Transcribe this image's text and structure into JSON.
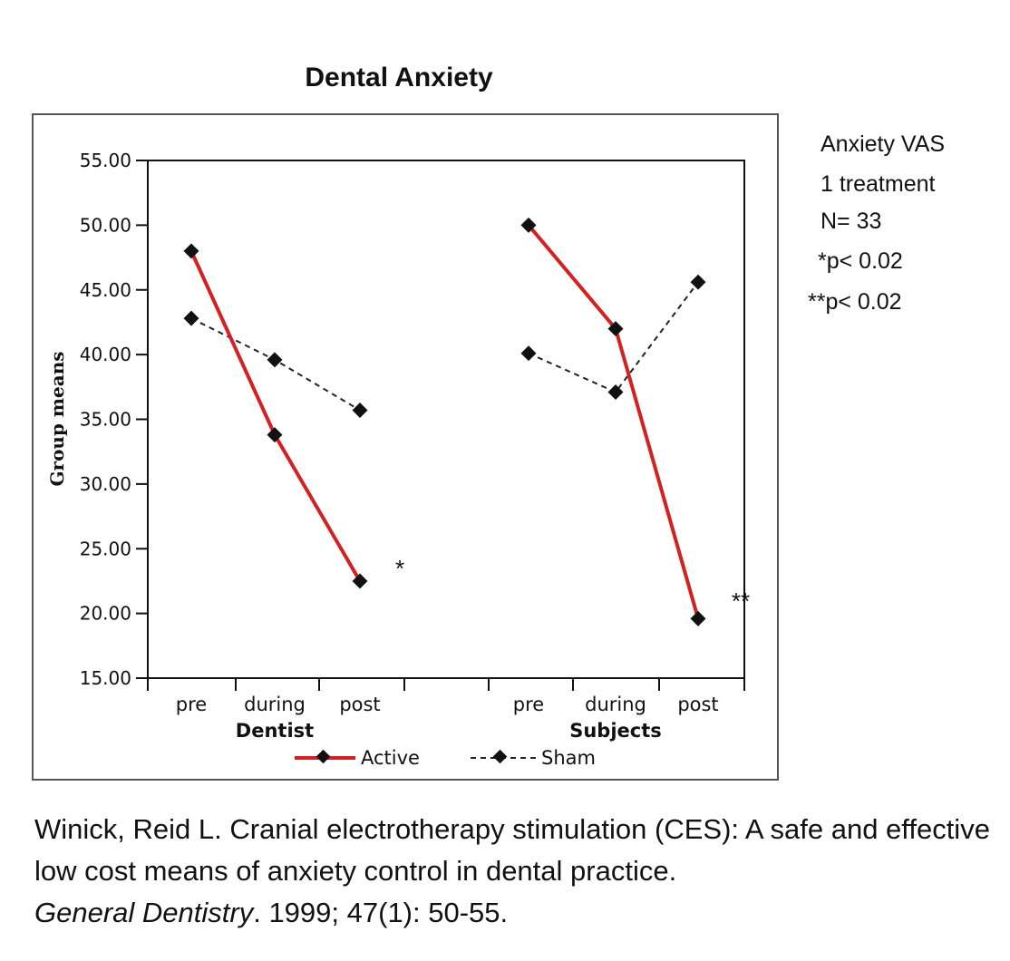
{
  "chart_data": {
    "type": "line",
    "title": "Dental Anxiety",
    "ylabel": "Group means",
    "ylim": [
      15,
      55
    ],
    "yticks": [
      "15.00",
      "20.00",
      "25.00",
      "30.00",
      "35.00",
      "40.00",
      "45.00",
      "50.00",
      "55.00"
    ],
    "grid": false,
    "legend_position": "bottom",
    "groups": [
      {
        "name": "Dentist",
        "categories": [
          "pre",
          "during",
          "post"
        ],
        "series": [
          {
            "name": "Active",
            "values": [
              48.0,
              33.8,
              22.5
            ],
            "color": "#d42020",
            "style": "solid"
          },
          {
            "name": "Sham",
            "values": [
              42.8,
              39.6,
              35.7
            ],
            "color": "#222222",
            "style": "dashed"
          }
        ],
        "annotation": "*"
      },
      {
        "name": "Subjects",
        "categories": [
          "pre",
          "during",
          "post"
        ],
        "series": [
          {
            "name": "Active",
            "values": [
              50.0,
              42.0,
              19.6
            ],
            "color": "#d42020",
            "style": "solid"
          },
          {
            "name": "Sham",
            "values": [
              40.1,
              37.1,
              45.6
            ],
            "color": "#222222",
            "style": "dashed"
          }
        ],
        "annotation": "**"
      }
    ],
    "legend": [
      {
        "name": "Active",
        "color": "#d42020",
        "style": "solid"
      },
      {
        "name": "Sham",
        "color": "#222222",
        "style": "dashed"
      }
    ]
  },
  "notes": [
    "Anxiety VAS",
    "1 treatment",
    "N= 33",
    "*p< 0.02",
    "**p< 0.02"
  ],
  "citation": {
    "authors": "Winick, Reid L.",
    "title": "Cranial electrotherapy stimulation (CES): A safe and effective low cost means of anxiety control in dental practice.",
    "journal": "General Dentistry",
    "details": ". 1999; 47(1): 50-55."
  }
}
